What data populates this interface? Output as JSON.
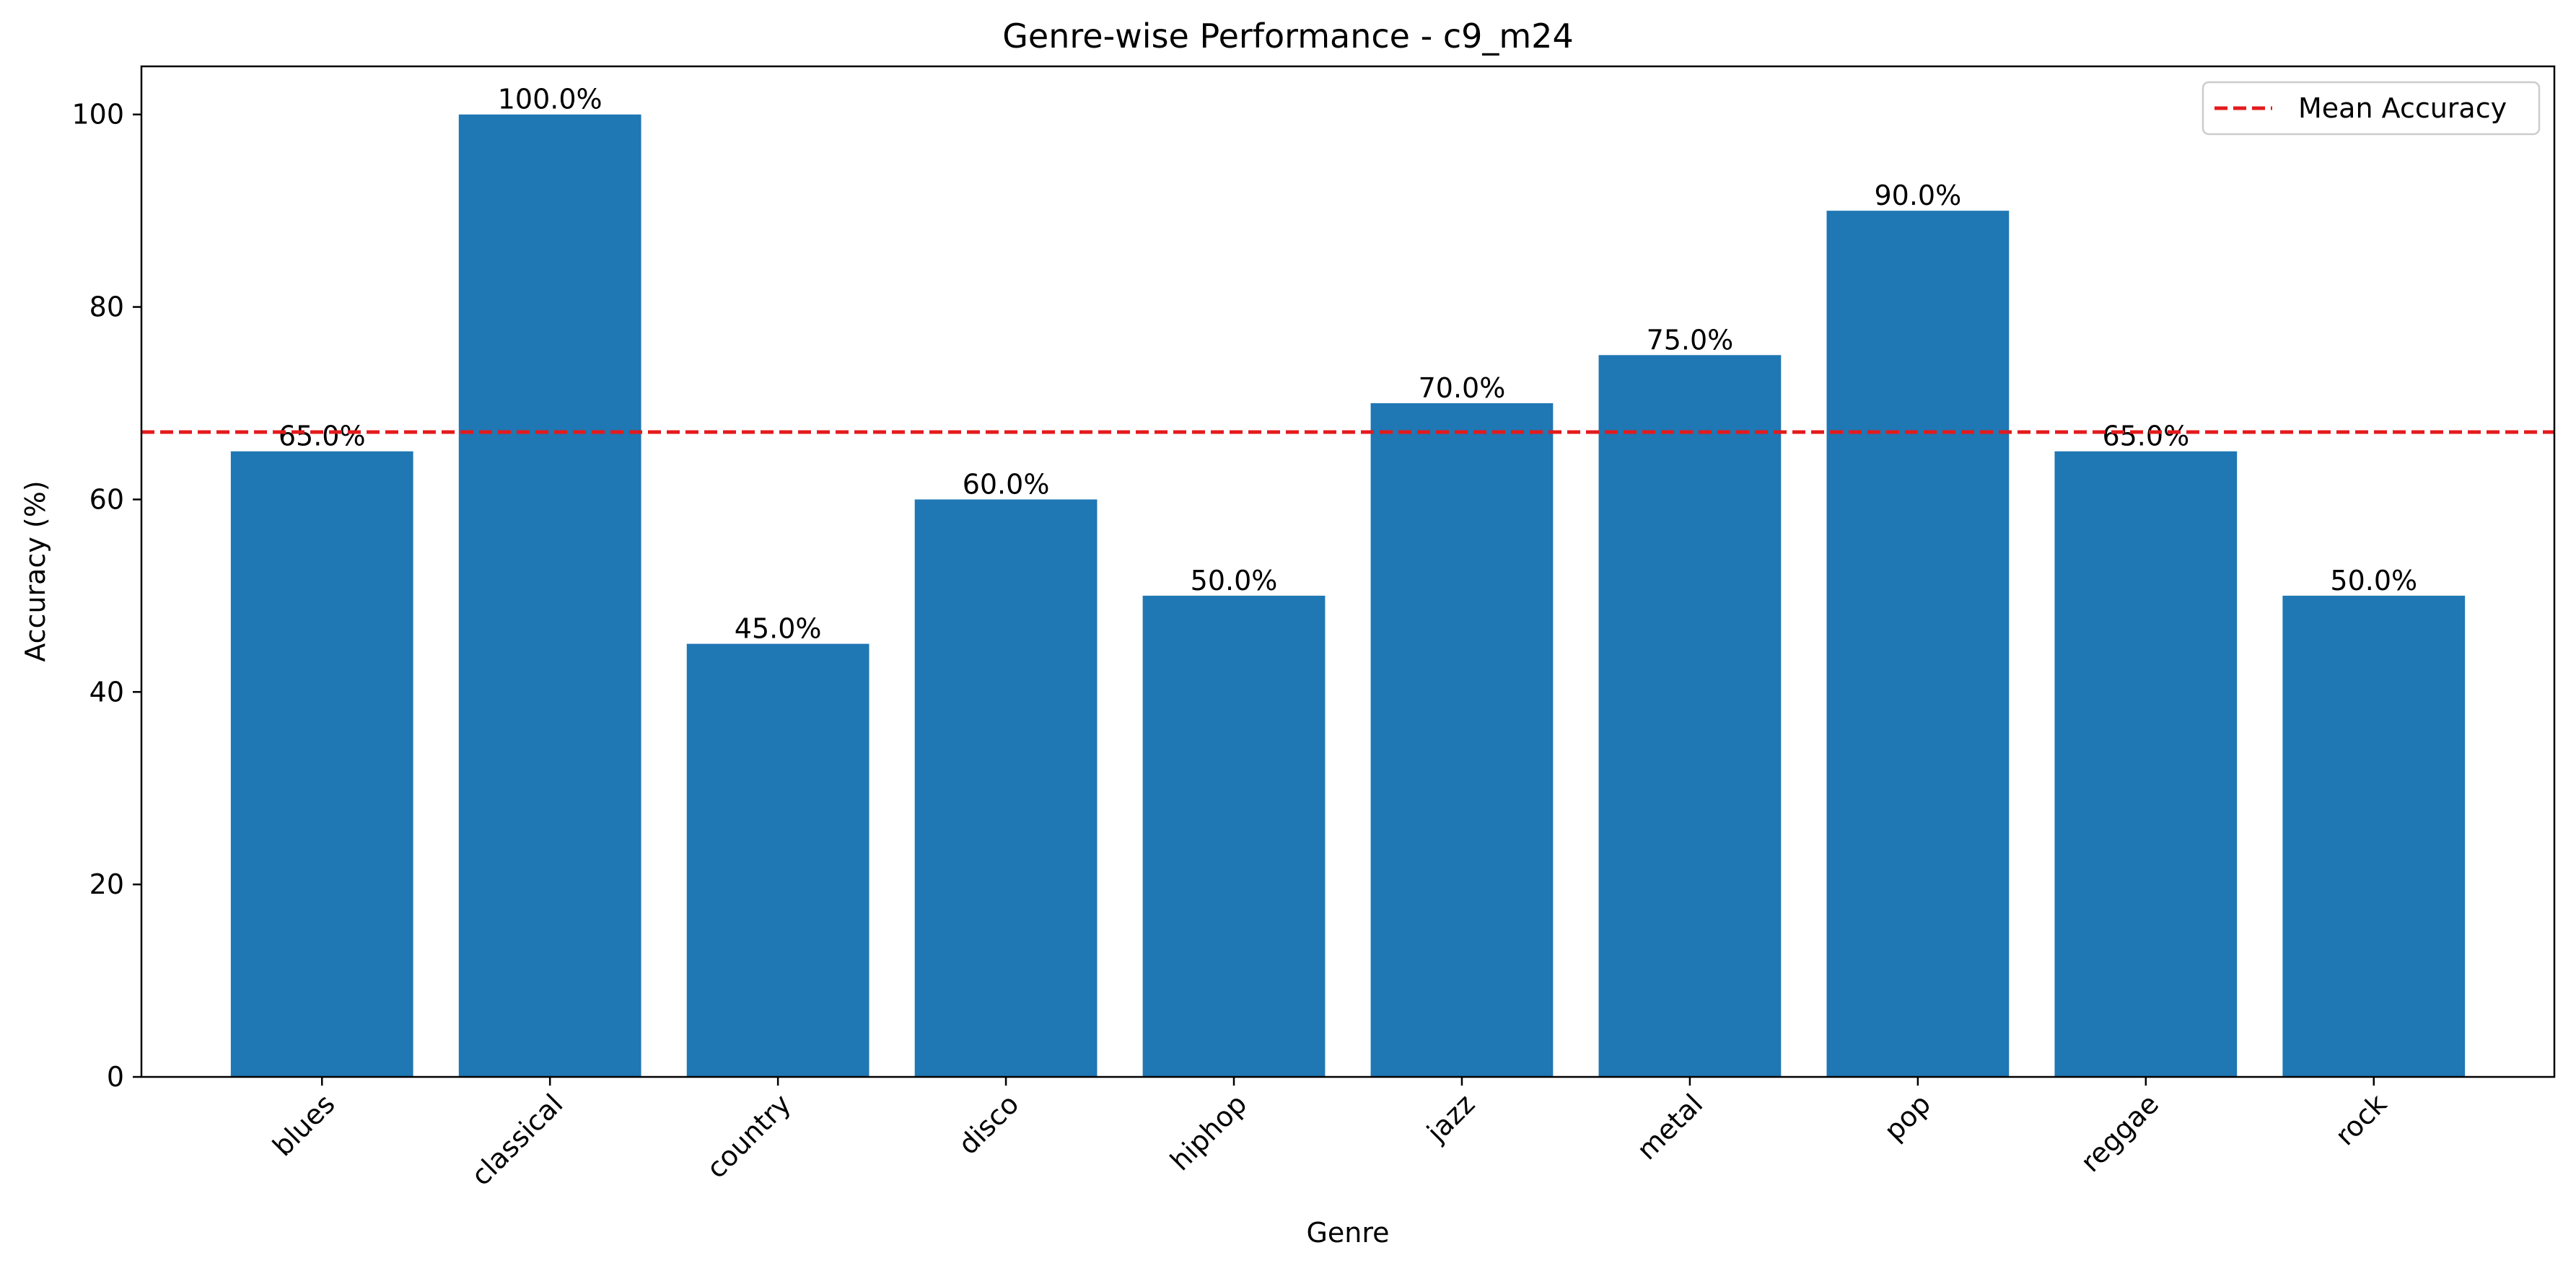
{
  "chart_data": {
    "type": "bar",
    "title": "Genre-wise Performance - c9_m24",
    "xlabel": "Genre",
    "ylabel": "Accuracy (%)",
    "categories": [
      "blues",
      "classical",
      "country",
      "disco",
      "hiphop",
      "jazz",
      "metal",
      "pop",
      "reggae",
      "rock"
    ],
    "values": [
      65,
      100,
      45,
      60,
      50,
      70,
      75,
      90,
      65,
      50
    ],
    "data_labels": [
      "65.0%",
      "100.0%",
      "45.0%",
      "60.0%",
      "50.0%",
      "70.0%",
      "75.0%",
      "90.0%",
      "65.0%",
      "50.0%"
    ],
    "ylim": [
      0,
      105
    ],
    "yticks": [
      0,
      20,
      40,
      60,
      80,
      100
    ],
    "ytick_labels": [
      "0",
      "20",
      "40",
      "60",
      "80",
      "100"
    ],
    "reference_line": {
      "name": "Mean Accuracy",
      "value": 67,
      "style": "dashed",
      "color": "#e41a1c"
    },
    "bar_color": "#1f77b4",
    "legend": {
      "position": "top-right",
      "entries": [
        "Mean Accuracy"
      ]
    },
    "grid": false
  }
}
